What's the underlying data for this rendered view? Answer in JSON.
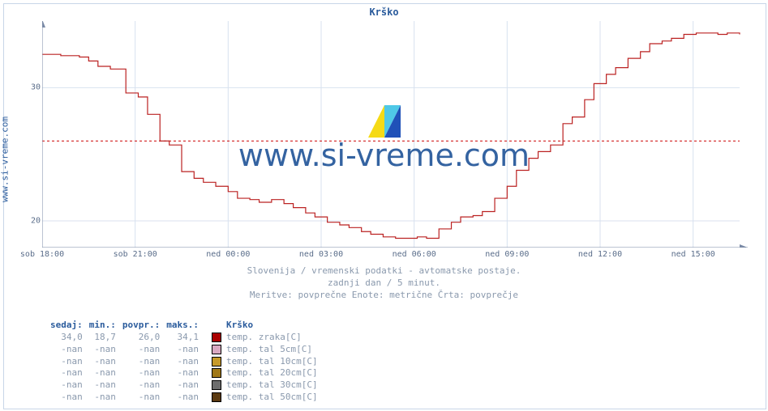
{
  "side_link": "www.si-vreme.com",
  "watermark": "www.si-vreme.com",
  "chart": {
    "type": "line",
    "title": "Krško",
    "subtitle_lines": [
      "Slovenija / vremenski podatki - avtomatske postaje.",
      "zadnji dan / 5 minut.",
      "Meritve: povprečne  Enote: metrične  Črta: povprečje"
    ],
    "background_color": "#ffffff",
    "plot_bg": "#ffffff",
    "grid_color": "#d8e2ef",
    "axis_color": "#7a8aa6",
    "text_color": "#5a6d8a",
    "title_color": "#2a5b9c",
    "font_family_mono": "DejaVu Sans Mono",
    "y": {
      "min": 18,
      "max": 35,
      "ticks": [
        20,
        30
      ],
      "tick_labels": [
        "20",
        "30"
      ]
    },
    "x": {
      "min_h": 18,
      "max_h": 40.5,
      "ticks_h": [
        18,
        21,
        24,
        27,
        30,
        33,
        36,
        39
      ],
      "tick_labels": [
        "sob 18:00",
        "sob 21:00",
        "ned 00:00",
        "ned 03:00",
        "ned 06:00",
        "ned 09:00",
        "ned 12:00",
        "ned 15:00"
      ]
    },
    "avg_line": {
      "value": 26.0,
      "color": "#cc0000",
      "dash": "3,3"
    },
    "series": {
      "color": "#bb2222",
      "points": [
        [
          18.0,
          32.5
        ],
        [
          18.6,
          32.4
        ],
        [
          19.2,
          32.3
        ],
        [
          19.5,
          32.0
        ],
        [
          19.8,
          31.6
        ],
        [
          20.2,
          31.4
        ],
        [
          20.4,
          31.4
        ],
        [
          20.7,
          29.6
        ],
        [
          21.1,
          29.3
        ],
        [
          21.4,
          28.0
        ],
        [
          21.8,
          26.0
        ],
        [
          22.1,
          25.7
        ],
        [
          22.5,
          23.7
        ],
        [
          22.9,
          23.2
        ],
        [
          23.2,
          22.9
        ],
        [
          23.6,
          22.6
        ],
        [
          24.0,
          22.2
        ],
        [
          24.3,
          21.7
        ],
        [
          24.7,
          21.6
        ],
        [
          25.0,
          21.4
        ],
        [
          25.4,
          21.6
        ],
        [
          25.8,
          21.3
        ],
        [
          26.1,
          21.0
        ],
        [
          26.5,
          20.6
        ],
        [
          26.8,
          20.3
        ],
        [
          27.2,
          19.9
        ],
        [
          27.6,
          19.7
        ],
        [
          27.9,
          19.5
        ],
        [
          28.3,
          19.2
        ],
        [
          28.6,
          19.0
        ],
        [
          29.0,
          18.8
        ],
        [
          29.4,
          18.7
        ],
        [
          29.7,
          18.7
        ],
        [
          30.1,
          18.8
        ],
        [
          30.4,
          18.7
        ],
        [
          30.8,
          19.4
        ],
        [
          31.2,
          19.9
        ],
        [
          31.5,
          20.3
        ],
        [
          31.9,
          20.4
        ],
        [
          32.2,
          20.7
        ],
        [
          32.6,
          21.7
        ],
        [
          33.0,
          22.6
        ],
        [
          33.3,
          23.8
        ],
        [
          33.7,
          24.7
        ],
        [
          34.0,
          25.2
        ],
        [
          34.4,
          25.7
        ],
        [
          34.8,
          27.3
        ],
        [
          35.1,
          27.8
        ],
        [
          35.5,
          29.1
        ],
        [
          35.8,
          30.3
        ],
        [
          36.2,
          31.0
        ],
        [
          36.5,
          31.5
        ],
        [
          36.9,
          32.2
        ],
        [
          37.3,
          32.7
        ],
        [
          37.6,
          33.3
        ],
        [
          38.0,
          33.5
        ],
        [
          38.3,
          33.7
        ],
        [
          38.7,
          34.0
        ],
        [
          39.1,
          34.1
        ],
        [
          39.4,
          34.1
        ],
        [
          39.8,
          34.0
        ],
        [
          40.1,
          34.1
        ],
        [
          40.5,
          34.0
        ]
      ]
    }
  },
  "legend": {
    "headers": {
      "sedaj": "sedaj",
      "min": "min",
      "povpr": "povpr",
      "maks": "maks",
      "name": "Krško"
    },
    "min_suffix": ".:",
    "rows": [
      {
        "sedaj": "34,0",
        "min": "18,7",
        "povpr": "26,0",
        "maks": "34,1",
        "color": "#aa0000",
        "label": "temp. zraka[C]"
      },
      {
        "sedaj": "-nan",
        "min": "-nan",
        "povpr": "-nan",
        "maks": "-nan",
        "color": "#d9a8c1",
        "label": "temp. tal  5cm[C]"
      },
      {
        "sedaj": "-nan",
        "min": "-nan",
        "povpr": "-nan",
        "maks": "-nan",
        "color": "#c79a2a",
        "label": "temp. tal 10cm[C]"
      },
      {
        "sedaj": "-nan",
        "min": "-nan",
        "povpr": "-nan",
        "maks": "-nan",
        "color": "#a07818",
        "label": "temp. tal 20cm[C]"
      },
      {
        "sedaj": "-nan",
        "min": "-nan",
        "povpr": "-nan",
        "maks": "-nan",
        "color": "#6d6d6d",
        "label": "temp. tal 30cm[C]"
      },
      {
        "sedaj": "-nan",
        "min": "-nan",
        "povpr": "-nan",
        "maks": "-nan",
        "color": "#5b3a12",
        "label": "temp. tal 50cm[C]"
      }
    ]
  }
}
